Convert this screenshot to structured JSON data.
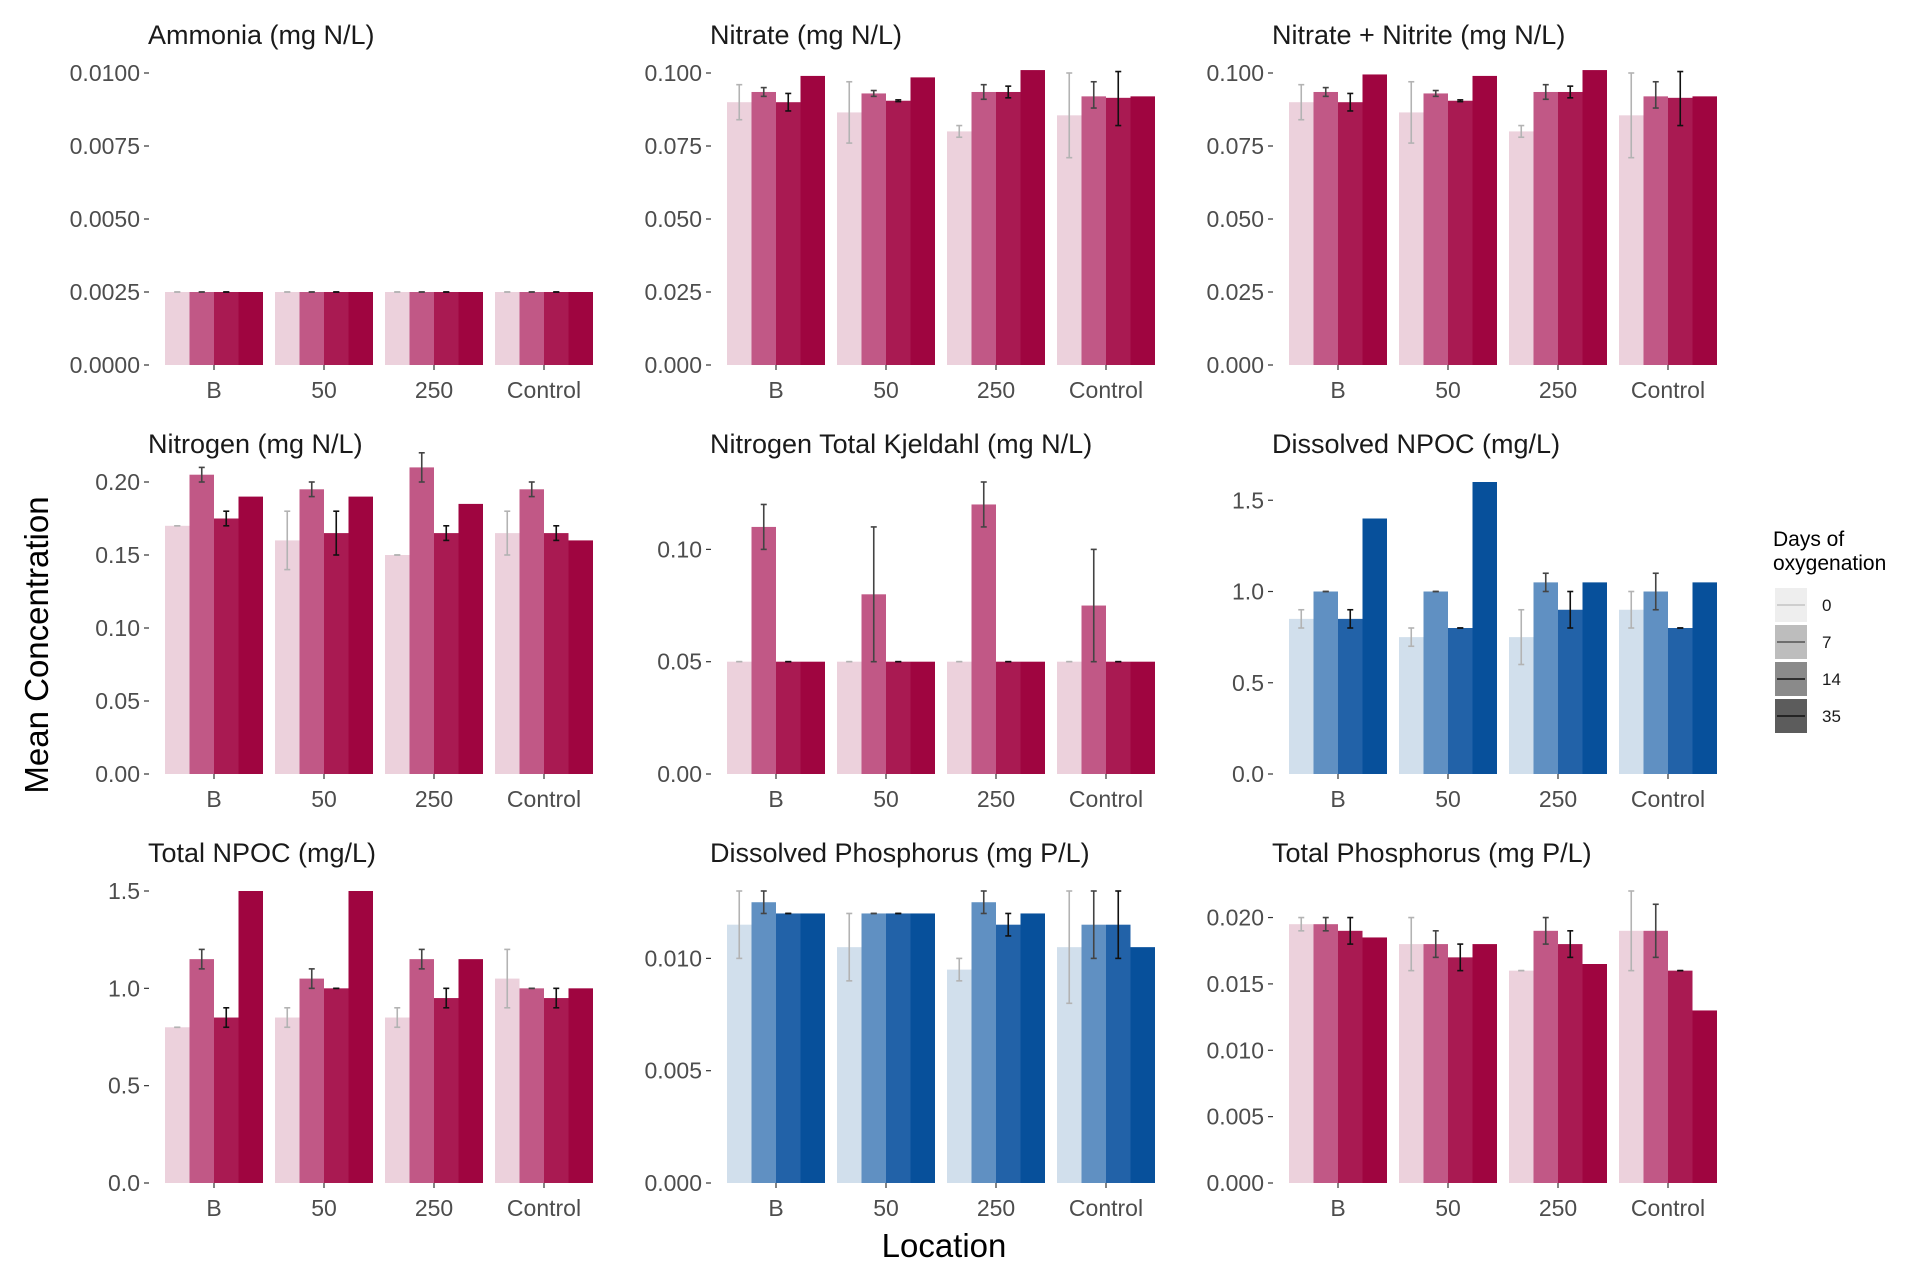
{
  "figure": {
    "xlabel": "Location",
    "ylabel": "Mean Concentration"
  },
  "legend": {
    "title_line1": "Days of",
    "title_line2": "oxygenation",
    "levels": [
      "0",
      "7",
      "14",
      "35"
    ],
    "grey_shades": [
      "#eeeeee",
      "#bdbdbd",
      "#8a8a8a",
      "#5c5c5c"
    ]
  },
  "palettes": {
    "red": [
      "#ecd1dc",
      "#c15886",
      "#a91a52",
      "#9f0540"
    ],
    "blue": [
      "#d1dfec",
      "#6090c2",
      "#2262a8",
      "#07509b"
    ]
  },
  "chart_data": [
    {
      "type": "bar",
      "title": "Ammonia (mg N/L)",
      "palette": "red",
      "categories": [
        "B",
        "50",
        "250",
        "Control"
      ],
      "ylim": [
        0,
        0.01
      ],
      "yticks": [
        0,
        0.0025,
        0.005,
        0.0075,
        0.01
      ],
      "ytick_labels": [
        "0.0000",
        "0.0025",
        "0.0050",
        "0.0075",
        "0.0100"
      ],
      "series": [
        {
          "name": "0",
          "values": [
            0.0025,
            0.0025,
            0.0025,
            0.0025
          ],
          "errors": [
            [
              0.0025,
              0.0025
            ],
            [
              0.0025,
              0.0025
            ],
            [
              0.0025,
              0.0025
            ],
            [
              0.0025,
              0.0025
            ]
          ]
        },
        {
          "name": "7",
          "values": [
            0.0025,
            0.0025,
            0.0025,
            0.0025
          ],
          "errors": [
            [
              0.0025,
              0.0025
            ],
            [
              0.0025,
              0.0025
            ],
            [
              0.0025,
              0.0025
            ],
            [
              0.0025,
              0.0025
            ]
          ]
        },
        {
          "name": "14",
          "values": [
            0.0025,
            0.0025,
            0.0025,
            0.0025
          ],
          "errors": [
            [
              0.0025,
              0.0025
            ],
            [
              0.0025,
              0.0025
            ],
            [
              0.0025,
              0.0025
            ],
            [
              0.0025,
              0.0025
            ]
          ]
        },
        {
          "name": "35",
          "values": [
            0.0025,
            0.0025,
            0.0025,
            0.0025
          ],
          "errors": [
            null,
            null,
            null,
            null
          ]
        }
      ]
    },
    {
      "type": "bar",
      "title": "Nitrate (mg N/L)",
      "palette": "red",
      "categories": [
        "B",
        "50",
        "250",
        "Control"
      ],
      "ylim": [
        0,
        0.1
      ],
      "yticks": [
        0,
        0.025,
        0.05,
        0.075,
        0.1
      ],
      "ytick_labels": [
        "0.000",
        "0.025",
        "0.050",
        "0.075",
        "0.100"
      ],
      "series": [
        {
          "name": "0",
          "values": [
            0.09,
            0.0865,
            0.08,
            0.0855
          ],
          "errors": [
            [
              0.084,
              0.096
            ],
            [
              0.076,
              0.097
            ],
            [
              0.078,
              0.082
            ],
            [
              0.071,
              0.1
            ]
          ]
        },
        {
          "name": "7",
          "values": [
            0.0935,
            0.093,
            0.0935,
            0.092
          ],
          "errors": [
            [
              0.092,
              0.095
            ],
            [
              0.092,
              0.094
            ],
            [
              0.091,
              0.096
            ],
            [
              0.088,
              0.097
            ]
          ]
        },
        {
          "name": "14",
          "values": [
            0.09,
            0.0905,
            0.0935,
            0.0915
          ],
          "errors": [
            [
              0.087,
              0.093
            ],
            [
              0.0902,
              0.0908
            ],
            [
              0.0915,
              0.0955
            ],
            [
              0.082,
              0.1005
            ]
          ]
        },
        {
          "name": "35",
          "values": [
            0.099,
            0.0985,
            0.101,
            0.092
          ],
          "errors": [
            null,
            null,
            null,
            null
          ]
        }
      ]
    },
    {
      "type": "bar",
      "title": "Nitrate + Nitrite (mg N/L)",
      "palette": "red",
      "categories": [
        "B",
        "50",
        "250",
        "Control"
      ],
      "ylim": [
        0,
        0.1
      ],
      "yticks": [
        0,
        0.025,
        0.05,
        0.075,
        0.1
      ],
      "ytick_labels": [
        "0.000",
        "0.025",
        "0.050",
        "0.075",
        "0.100"
      ],
      "series": [
        {
          "name": "0",
          "values": [
            0.09,
            0.0865,
            0.08,
            0.0855
          ],
          "errors": [
            [
              0.084,
              0.096
            ],
            [
              0.076,
              0.097
            ],
            [
              0.078,
              0.082
            ],
            [
              0.071,
              0.1
            ]
          ]
        },
        {
          "name": "7",
          "values": [
            0.0935,
            0.093,
            0.0935,
            0.092
          ],
          "errors": [
            [
              0.092,
              0.095
            ],
            [
              0.092,
              0.094
            ],
            [
              0.091,
              0.096
            ],
            [
              0.088,
              0.097
            ]
          ]
        },
        {
          "name": "14",
          "values": [
            0.09,
            0.0905,
            0.0935,
            0.0915
          ],
          "errors": [
            [
              0.087,
              0.093
            ],
            [
              0.0902,
              0.0908
            ],
            [
              0.0915,
              0.0955
            ],
            [
              0.082,
              0.1005
            ]
          ]
        },
        {
          "name": "35",
          "values": [
            0.0995,
            0.099,
            0.101,
            0.092
          ],
          "errors": [
            null,
            null,
            null,
            null
          ]
        }
      ]
    },
    {
      "type": "bar",
      "title": "Nitrogen (mg N/L)",
      "palette": "red",
      "categories": [
        "B",
        "50",
        "250",
        "Control"
      ],
      "ylim": [
        0,
        0.2
      ],
      "yticks": [
        0,
        0.05,
        0.1,
        0.15,
        0.2
      ],
      "ytick_labels": [
        "0.00",
        "0.05",
        "0.10",
        "0.15",
        "0.20"
      ],
      "series": [
        {
          "name": "0",
          "values": [
            0.17,
            0.16,
            0.15,
            0.165
          ],
          "errors": [
            [
              0.17,
              0.17
            ],
            [
              0.14,
              0.18
            ],
            [
              0.15,
              0.15
            ],
            [
              0.15,
              0.18
            ]
          ]
        },
        {
          "name": "7",
          "values": [
            0.205,
            0.195,
            0.21,
            0.195
          ],
          "errors": [
            [
              0.2,
              0.21
            ],
            [
              0.19,
              0.2
            ],
            [
              0.2,
              0.22
            ],
            [
              0.19,
              0.2
            ]
          ]
        },
        {
          "name": "14",
          "values": [
            0.175,
            0.165,
            0.165,
            0.165
          ],
          "errors": [
            [
              0.17,
              0.18
            ],
            [
              0.15,
              0.18
            ],
            [
              0.16,
              0.17
            ],
            [
              0.16,
              0.17
            ]
          ]
        },
        {
          "name": "35",
          "values": [
            0.19,
            0.19,
            0.185,
            0.16
          ],
          "errors": [
            null,
            null,
            null,
            null
          ]
        }
      ]
    },
    {
      "type": "bar",
      "title": "Nitrogen Total Kjeldahl (mg N/L)",
      "palette": "red",
      "categories": [
        "B",
        "50",
        "250",
        "Control"
      ],
      "ylim": [
        0,
        0.13
      ],
      "yticks": [
        0,
        0.05,
        0.1
      ],
      "ytick_labels": [
        "0.00",
        "0.05",
        "0.10"
      ],
      "series": [
        {
          "name": "0",
          "values": [
            0.05,
            0.05,
            0.05,
            0.05
          ],
          "errors": [
            [
              0.05,
              0.05
            ],
            [
              0.05,
              0.05
            ],
            [
              0.05,
              0.05
            ],
            [
              0.05,
              0.05
            ]
          ]
        },
        {
          "name": "7",
          "values": [
            0.11,
            0.08,
            0.12,
            0.075
          ],
          "errors": [
            [
              0.1,
              0.12
            ],
            [
              0.05,
              0.11
            ],
            [
              0.11,
              0.13
            ],
            [
              0.05,
              0.1
            ]
          ]
        },
        {
          "name": "14",
          "values": [
            0.05,
            0.05,
            0.05,
            0.05
          ],
          "errors": [
            [
              0.05,
              0.05
            ],
            [
              0.05,
              0.05
            ],
            [
              0.05,
              0.05
            ],
            [
              0.05,
              0.05
            ]
          ]
        },
        {
          "name": "35",
          "values": [
            0.05,
            0.05,
            0.05,
            0.05
          ],
          "errors": [
            null,
            null,
            null,
            null
          ]
        }
      ]
    },
    {
      "type": "bar",
      "title": "Dissolved NPOC (mg/L)",
      "palette": "blue",
      "categories": [
        "B",
        "50",
        "250",
        "Control"
      ],
      "ylim": [
        0,
        1.6
      ],
      "yticks": [
        0,
        0.5,
        1.0,
        1.5
      ],
      "ytick_labels": [
        "0.0",
        "0.5",
        "1.0",
        "1.5"
      ],
      "series": [
        {
          "name": "0",
          "values": [
            0.85,
            0.75,
            0.75,
            0.9
          ],
          "errors": [
            [
              0.8,
              0.9
            ],
            [
              0.7,
              0.8
            ],
            [
              0.6,
              0.9
            ],
            [
              0.8,
              1.0
            ]
          ]
        },
        {
          "name": "7",
          "values": [
            1.0,
            1.0,
            1.05,
            1.0
          ],
          "errors": [
            [
              1.0,
              1.0
            ],
            [
              1.0,
              1.0
            ],
            [
              1.0,
              1.1
            ],
            [
              0.9,
              1.1
            ]
          ]
        },
        {
          "name": "14",
          "values": [
            0.85,
            0.8,
            0.9,
            0.8
          ],
          "errors": [
            [
              0.8,
              0.9
            ],
            [
              0.8,
              0.8
            ],
            [
              0.8,
              1.0
            ],
            [
              0.8,
              0.8
            ]
          ]
        },
        {
          "name": "35",
          "values": [
            1.4,
            1.6,
            1.05,
            1.05
          ],
          "errors": [
            null,
            null,
            null,
            null
          ]
        }
      ]
    },
    {
      "type": "bar",
      "title": "Total NPOC (mg/L)",
      "palette": "red",
      "categories": [
        "B",
        "50",
        "250",
        "Control"
      ],
      "ylim": [
        0,
        1.5
      ],
      "yticks": [
        0,
        0.5,
        1.0,
        1.5
      ],
      "ytick_labels": [
        "0.0",
        "0.5",
        "1.0",
        "1.5"
      ],
      "series": [
        {
          "name": "0",
          "values": [
            0.8,
            0.85,
            0.85,
            1.05
          ],
          "errors": [
            [
              0.8,
              0.8
            ],
            [
              0.8,
              0.9
            ],
            [
              0.8,
              0.9
            ],
            [
              0.9,
              1.2
            ]
          ]
        },
        {
          "name": "7",
          "values": [
            1.15,
            1.05,
            1.15,
            1.0
          ],
          "errors": [
            [
              1.1,
              1.2
            ],
            [
              1.0,
              1.1
            ],
            [
              1.1,
              1.2
            ],
            [
              1.0,
              1.0
            ]
          ]
        },
        {
          "name": "14",
          "values": [
            0.85,
            1.0,
            0.95,
            0.95
          ],
          "errors": [
            [
              0.8,
              0.9
            ],
            [
              1.0,
              1.0
            ],
            [
              0.9,
              1.0
            ],
            [
              0.9,
              1.0
            ]
          ]
        },
        {
          "name": "35",
          "values": [
            1.5,
            1.5,
            1.15,
            1.0
          ],
          "errors": [
            null,
            null,
            null,
            null
          ]
        }
      ]
    },
    {
      "type": "bar",
      "title": "Dissolved Phosphorus (mg P/L)",
      "palette": "blue",
      "categories": [
        "B",
        "50",
        "250",
        "Control"
      ],
      "ylim": [
        0,
        0.013
      ],
      "yticks": [
        0,
        0.005,
        0.01
      ],
      "ytick_labels": [
        "0.000",
        "0.005",
        "0.010"
      ],
      "series": [
        {
          "name": "0",
          "values": [
            0.0115,
            0.0105,
            0.0095,
            0.0105
          ],
          "errors": [
            [
              0.01,
              0.013
            ],
            [
              0.009,
              0.012
            ],
            [
              0.009,
              0.01
            ],
            [
              0.008,
              0.013
            ]
          ]
        },
        {
          "name": "7",
          "values": [
            0.0125,
            0.012,
            0.0125,
            0.0115
          ],
          "errors": [
            [
              0.012,
              0.013
            ],
            [
              0.012,
              0.012
            ],
            [
              0.012,
              0.013
            ],
            [
              0.01,
              0.013
            ]
          ]
        },
        {
          "name": "14",
          "values": [
            0.012,
            0.012,
            0.0115,
            0.0115
          ],
          "errors": [
            [
              0.012,
              0.012
            ],
            [
              0.012,
              0.012
            ],
            [
              0.011,
              0.012
            ],
            [
              0.01,
              0.013
            ]
          ]
        },
        {
          "name": "35",
          "values": [
            0.012,
            0.012,
            0.012,
            0.0105
          ],
          "errors": [
            null,
            null,
            null,
            null
          ]
        }
      ]
    },
    {
      "type": "bar",
      "title": "Total Phosphorus (mg P/L)",
      "palette": "red",
      "categories": [
        "B",
        "50",
        "250",
        "Control"
      ],
      "ylim": [
        0,
        0.022
      ],
      "yticks": [
        0,
        0.005,
        0.01,
        0.015,
        0.02
      ],
      "ytick_labels": [
        "0.000",
        "0.005",
        "0.010",
        "0.015",
        "0.020"
      ],
      "series": [
        {
          "name": "0",
          "values": [
            0.0195,
            0.018,
            0.016,
            0.019
          ],
          "errors": [
            [
              0.019,
              0.02
            ],
            [
              0.016,
              0.02
            ],
            [
              0.016,
              0.016
            ],
            [
              0.016,
              0.022
            ]
          ]
        },
        {
          "name": "7",
          "values": [
            0.0195,
            0.018,
            0.019,
            0.019
          ],
          "errors": [
            [
              0.019,
              0.02
            ],
            [
              0.017,
              0.019
            ],
            [
              0.018,
              0.02
            ],
            [
              0.017,
              0.021
            ]
          ]
        },
        {
          "name": "14",
          "values": [
            0.019,
            0.017,
            0.018,
            0.016
          ],
          "errors": [
            [
              0.018,
              0.02
            ],
            [
              0.016,
              0.018
            ],
            [
              0.017,
              0.019
            ],
            [
              0.016,
              0.016
            ]
          ]
        },
        {
          "name": "35",
          "values": [
            0.0185,
            0.018,
            0.0165,
            0.013
          ],
          "errors": [
            null,
            null,
            null,
            null
          ]
        }
      ]
    }
  ]
}
